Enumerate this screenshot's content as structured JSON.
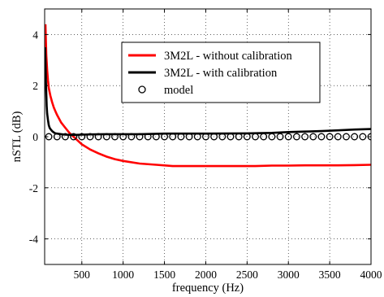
{
  "chart_data": {
    "type": "line",
    "title": "",
    "xlabel": "frequency (Hz)",
    "ylabel": "nSTL (dB)",
    "xlim": [
      50,
      4000
    ],
    "ylim": [
      -5,
      5
    ],
    "xticks": [
      500,
      1000,
      1500,
      2000,
      2500,
      3000,
      3500,
      4000
    ],
    "xtick_labels": [
      "500",
      "1000",
      "1500",
      "2000",
      "2500",
      "3000",
      "3500",
      "4000"
    ],
    "yticks": [
      -4,
      -2,
      0,
      2,
      4
    ],
    "ytick_labels": [
      "-4",
      "-2",
      "0",
      "2",
      "4"
    ],
    "grid": true,
    "legend_position": "top-right",
    "series": [
      {
        "name": "3M2L - without calibration",
        "color": "#ff0000",
        "style": "line",
        "x": [
          60,
          70,
          80,
          90,
          100,
          120,
          140,
          160,
          180,
          200,
          250,
          300,
          350,
          400,
          500,
          600,
          700,
          800,
          900,
          1000,
          1200,
          1400,
          1600,
          1800,
          2000,
          2200,
          2400,
          2600,
          2800,
          3000,
          3200,
          3400,
          3600,
          3800,
          4000
        ],
        "y": [
          4.4,
          3.2,
          2.6,
          2.2,
          1.9,
          1.6,
          1.35,
          1.15,
          1.0,
          0.85,
          0.55,
          0.35,
          0.15,
          0.0,
          -0.3,
          -0.5,
          -0.65,
          -0.78,
          -0.88,
          -0.95,
          -1.05,
          -1.1,
          -1.15,
          -1.15,
          -1.15,
          -1.15,
          -1.15,
          -1.15,
          -1.13,
          -1.13,
          -1.12,
          -1.12,
          -1.12,
          -1.11,
          -1.1
        ]
      },
      {
        "name": "3M2L - with calibration",
        "color": "#000000",
        "style": "line",
        "x": [
          55,
          60,
          65,
          70,
          75,
          80,
          90,
          100,
          110,
          120,
          140,
          160,
          180,
          200,
          250,
          300,
          400,
          500,
          600,
          800,
          1000,
          1200,
          1500,
          2000,
          2500,
          2800,
          3000,
          3200,
          3400,
          3600,
          3800,
          4000
        ],
        "y": [
          3.5,
          3.0,
          2.2,
          1.7,
          1.2,
          0.9,
          0.65,
          0.45,
          0.35,
          0.3,
          0.22,
          0.17,
          0.13,
          0.12,
          0.1,
          0.08,
          0.07,
          0.08,
          0.09,
          0.1,
          0.1,
          0.1,
          0.12,
          0.12,
          0.13,
          0.15,
          0.18,
          0.2,
          0.22,
          0.25,
          0.28,
          0.3
        ]
      },
      {
        "name": "model",
        "color": "#000000",
        "style": "marker-circle",
        "x": [
          100,
          200,
          300,
          400,
          500,
          600,
          700,
          800,
          900,
          1000,
          1100,
          1200,
          1300,
          1400,
          1500,
          1600,
          1700,
          1800,
          1900,
          2000,
          2100,
          2200,
          2300,
          2400,
          2500,
          2600,
          2700,
          2800,
          2900,
          3000,
          3100,
          3200,
          3300,
          3400,
          3500,
          3600,
          3700,
          3800,
          3900,
          4000
        ],
        "y": [
          0,
          0,
          0,
          0,
          0,
          0,
          0,
          0,
          0,
          0,
          0,
          0,
          0,
          0,
          0,
          0,
          0,
          0,
          0,
          0,
          0,
          0,
          0,
          0,
          0,
          0,
          0,
          0,
          0,
          0,
          0,
          0,
          0,
          0,
          0,
          0,
          0,
          0,
          0,
          0
        ]
      }
    ]
  }
}
